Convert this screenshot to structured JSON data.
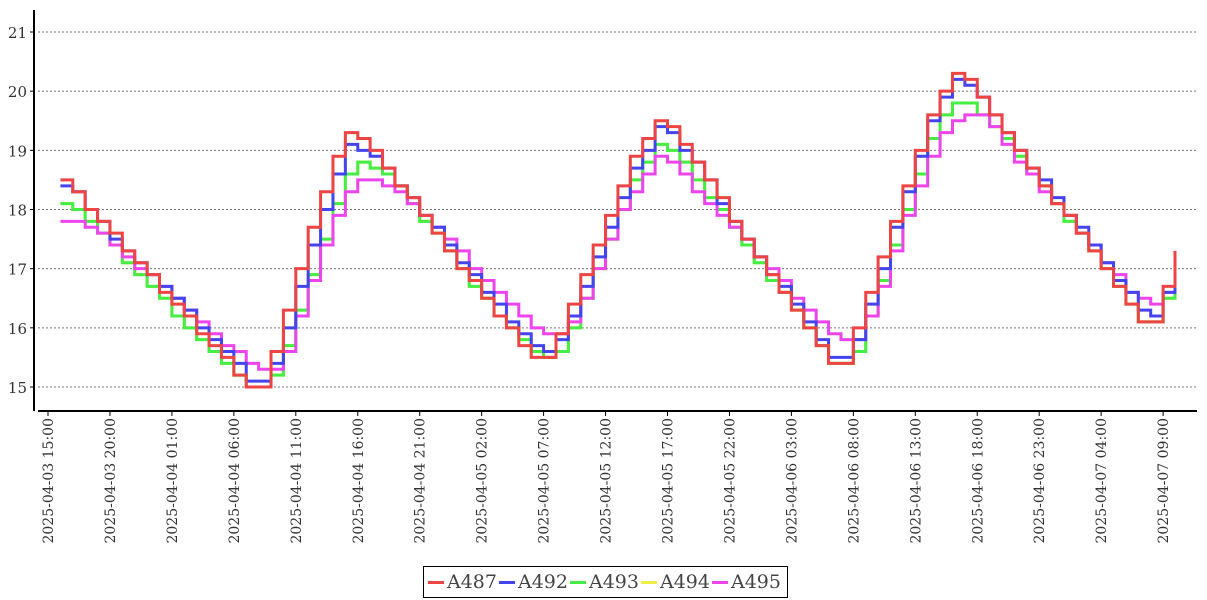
{
  "chart_data": {
    "type": "line",
    "step": true,
    "x_start": "2025-04-03 16:00",
    "x_step_hours": 1,
    "ylim": [
      14.6,
      21.4
    ],
    "yticks": [
      15,
      16,
      17,
      18,
      19,
      20,
      21
    ],
    "xticks": [
      "2025-04-03 15:00",
      "2025-04-03 20:00",
      "2025-04-04 01:00",
      "2025-04-04 06:00",
      "2025-04-04 11:00",
      "2025-04-04 16:00",
      "2025-04-04 21:00",
      "2025-04-05 02:00",
      "2025-04-05 07:00",
      "2025-04-05 12:00",
      "2025-04-05 17:00",
      "2025-04-05 22:00",
      "2025-04-06 03:00",
      "2025-04-06 08:00",
      "2025-04-06 13:00",
      "2025-04-06 18:00",
      "2025-04-06 23:00",
      "2025-04-07 04:00",
      "2025-04-07 09:00"
    ],
    "grid": true,
    "legend_position": "bottom",
    "series": [
      {
        "name": "A487",
        "color": "#ee4444",
        "values": [
          18.5,
          18.3,
          18.0,
          17.8,
          17.6,
          17.3,
          17.1,
          16.9,
          16.6,
          16.4,
          16.2,
          15.9,
          15.7,
          15.5,
          15.2,
          15.0,
          15.0,
          15.6,
          16.3,
          17.0,
          17.7,
          18.3,
          18.9,
          19.3,
          19.2,
          19.0,
          18.7,
          18.4,
          18.2,
          17.9,
          17.6,
          17.3,
          17.0,
          16.8,
          16.5,
          16.2,
          16.0,
          15.7,
          15.5,
          15.5,
          15.9,
          16.4,
          16.9,
          17.4,
          17.9,
          18.4,
          18.9,
          19.2,
          19.5,
          19.4,
          19.1,
          18.8,
          18.5,
          18.2,
          17.8,
          17.5,
          17.2,
          16.9,
          16.6,
          16.3,
          16.0,
          15.7,
          15.4,
          15.4,
          16.0,
          16.6,
          17.2,
          17.8,
          18.4,
          19.0,
          19.6,
          20.0,
          20.3,
          20.2,
          19.9,
          19.6,
          19.3,
          19.0,
          18.7,
          18.4,
          18.1,
          17.9,
          17.6,
          17.3,
          17.0,
          16.7,
          16.4,
          16.1,
          16.1,
          16.7,
          17.3
        ]
      },
      {
        "name": "A492",
        "color": "#4444ee",
        "values": [
          18.4,
          18.3,
          18.0,
          17.8,
          17.5,
          17.3,
          17.1,
          16.9,
          16.7,
          16.5,
          16.3,
          16.0,
          15.8,
          15.6,
          15.4,
          15.1,
          15.1,
          15.4,
          16.0,
          16.7,
          17.4,
          18.0,
          18.6,
          19.1,
          19.0,
          18.9,
          18.7,
          18.4,
          18.2,
          17.9,
          17.7,
          17.4,
          17.1,
          16.9,
          16.6,
          16.4,
          16.1,
          15.9,
          15.7,
          15.6,
          15.8,
          16.2,
          16.7,
          17.2,
          17.7,
          18.2,
          18.7,
          19.0,
          19.4,
          19.3,
          19.0,
          18.8,
          18.5,
          18.1,
          17.8,
          17.5,
          17.2,
          16.9,
          16.7,
          16.4,
          16.1,
          15.8,
          15.5,
          15.5,
          15.8,
          16.4,
          17.0,
          17.7,
          18.3,
          18.9,
          19.5,
          19.9,
          20.2,
          20.1,
          19.9,
          19.6,
          19.3,
          19.0,
          18.7,
          18.5,
          18.2,
          17.9,
          17.7,
          17.4,
          17.1,
          16.8,
          16.6,
          16.3,
          16.2,
          16.6,
          17.2
        ]
      },
      {
        "name": "A493",
        "color": "#44ee44",
        "values": [
          18.1,
          18.0,
          17.8,
          17.6,
          17.4,
          17.1,
          16.9,
          16.7,
          16.5,
          16.2,
          16.0,
          15.8,
          15.6,
          15.4,
          15.2,
          15.0,
          15.0,
          15.2,
          15.7,
          16.3,
          16.9,
          17.5,
          18.1,
          18.6,
          18.8,
          18.7,
          18.6,
          18.4,
          18.1,
          17.8,
          17.6,
          17.3,
          17.0,
          16.7,
          16.5,
          16.2,
          16.0,
          15.8,
          15.6,
          15.5,
          15.6,
          16.0,
          16.5,
          17.0,
          17.5,
          18.0,
          18.5,
          18.8,
          19.1,
          19.0,
          18.8,
          18.5,
          18.2,
          18.0,
          17.7,
          17.4,
          17.1,
          16.8,
          16.6,
          16.3,
          16.0,
          15.7,
          15.4,
          15.4,
          15.6,
          16.2,
          16.8,
          17.4,
          18.0,
          18.6,
          19.2,
          19.6,
          19.8,
          19.8,
          19.6,
          19.4,
          19.2,
          18.9,
          18.6,
          18.4,
          18.1,
          17.8,
          17.6,
          17.3,
          17.0,
          16.7,
          16.4,
          16.1,
          16.1,
          16.5,
          17.0
        ]
      },
      {
        "name": "A494",
        "color": "#eeee44",
        "values": [
          18.1,
          18.0,
          17.8,
          17.6,
          17.4,
          17.1,
          16.9,
          16.7,
          16.5,
          16.2,
          16.0,
          15.8,
          15.6,
          15.4,
          15.2,
          15.0,
          15.0,
          15.2,
          15.7,
          16.3,
          16.9,
          17.5,
          18.1,
          18.6,
          18.8,
          18.7,
          18.6,
          18.4,
          18.1,
          17.8,
          17.6,
          17.3,
          17.0,
          16.7,
          16.5,
          16.2,
          16.0,
          15.8,
          15.6,
          15.5,
          15.6,
          16.0,
          16.5,
          17.0,
          17.5,
          18.0,
          18.5,
          18.8,
          19.1,
          19.0,
          18.8,
          18.5,
          18.2,
          18.0,
          17.7,
          17.4,
          17.1,
          16.8,
          16.6,
          16.3,
          16.0,
          15.7,
          15.4,
          15.4,
          15.6,
          16.2,
          16.8,
          17.4,
          18.0,
          18.6,
          19.2,
          19.6,
          19.8,
          19.8,
          19.6,
          19.4,
          19.2,
          18.9,
          18.6,
          18.4,
          18.1,
          17.8,
          17.6,
          17.3,
          17.0,
          16.7,
          16.4,
          16.1,
          16.1,
          16.5,
          17.0
        ]
      },
      {
        "name": "A495",
        "color": "#ee44ee",
        "values": [
          17.8,
          17.8,
          17.7,
          17.6,
          17.4,
          17.2,
          17.0,
          16.9,
          16.7,
          16.5,
          16.3,
          16.1,
          15.9,
          15.7,
          15.6,
          15.4,
          15.3,
          15.3,
          15.6,
          16.2,
          16.8,
          17.4,
          17.9,
          18.3,
          18.5,
          18.5,
          18.4,
          18.3,
          18.1,
          17.9,
          17.7,
          17.5,
          17.3,
          17.0,
          16.8,
          16.6,
          16.4,
          16.2,
          16.0,
          15.9,
          15.9,
          16.1,
          16.5,
          17.0,
          17.5,
          18.0,
          18.3,
          18.6,
          18.9,
          18.8,
          18.6,
          18.3,
          18.1,
          17.9,
          17.7,
          17.5,
          17.2,
          17.0,
          16.8,
          16.5,
          16.3,
          16.1,
          15.9,
          15.8,
          15.8,
          16.2,
          16.7,
          17.3,
          17.9,
          18.4,
          18.9,
          19.3,
          19.5,
          19.6,
          19.6,
          19.4,
          19.1,
          18.8,
          18.6,
          18.3,
          18.1,
          17.9,
          17.6,
          17.4,
          17.1,
          16.9,
          16.6,
          16.5,
          16.4,
          16.6,
          17.0
        ]
      }
    ]
  }
}
